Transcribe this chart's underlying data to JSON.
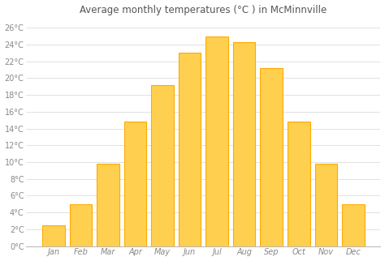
{
  "title": "Average monthly temperatures (°C ) in McMinnville",
  "months": [
    "Jan",
    "Feb",
    "Mar",
    "Apr",
    "May",
    "Jun",
    "Jul",
    "Aug",
    "Sep",
    "Oct",
    "Nov",
    "Dec"
  ],
  "values": [
    2.5,
    5.0,
    9.8,
    14.8,
    19.2,
    23.0,
    25.0,
    24.3,
    21.2,
    14.8,
    9.8,
    5.0
  ],
  "bar_color": "#FFAA00",
  "bar_color_light": "#FFD050",
  "background_color": "#ffffff",
  "plot_bg_color": "#f0f0f0",
  "ylim": [
    0,
    27
  ],
  "yticks": [
    0,
    2,
    4,
    6,
    8,
    10,
    12,
    14,
    16,
    18,
    20,
    22,
    24,
    26
  ],
  "ytick_labels": [
    "0°C",
    "2°C",
    "4°C",
    "6°C",
    "8°C",
    "10°C",
    "12°C",
    "14°C",
    "16°C",
    "18°C",
    "20°C",
    "22°C",
    "24°C",
    "26°C"
  ],
  "grid_color": "#dddddd",
  "title_fontsize": 8.5,
  "tick_fontsize": 7,
  "bar_width": 0.82
}
